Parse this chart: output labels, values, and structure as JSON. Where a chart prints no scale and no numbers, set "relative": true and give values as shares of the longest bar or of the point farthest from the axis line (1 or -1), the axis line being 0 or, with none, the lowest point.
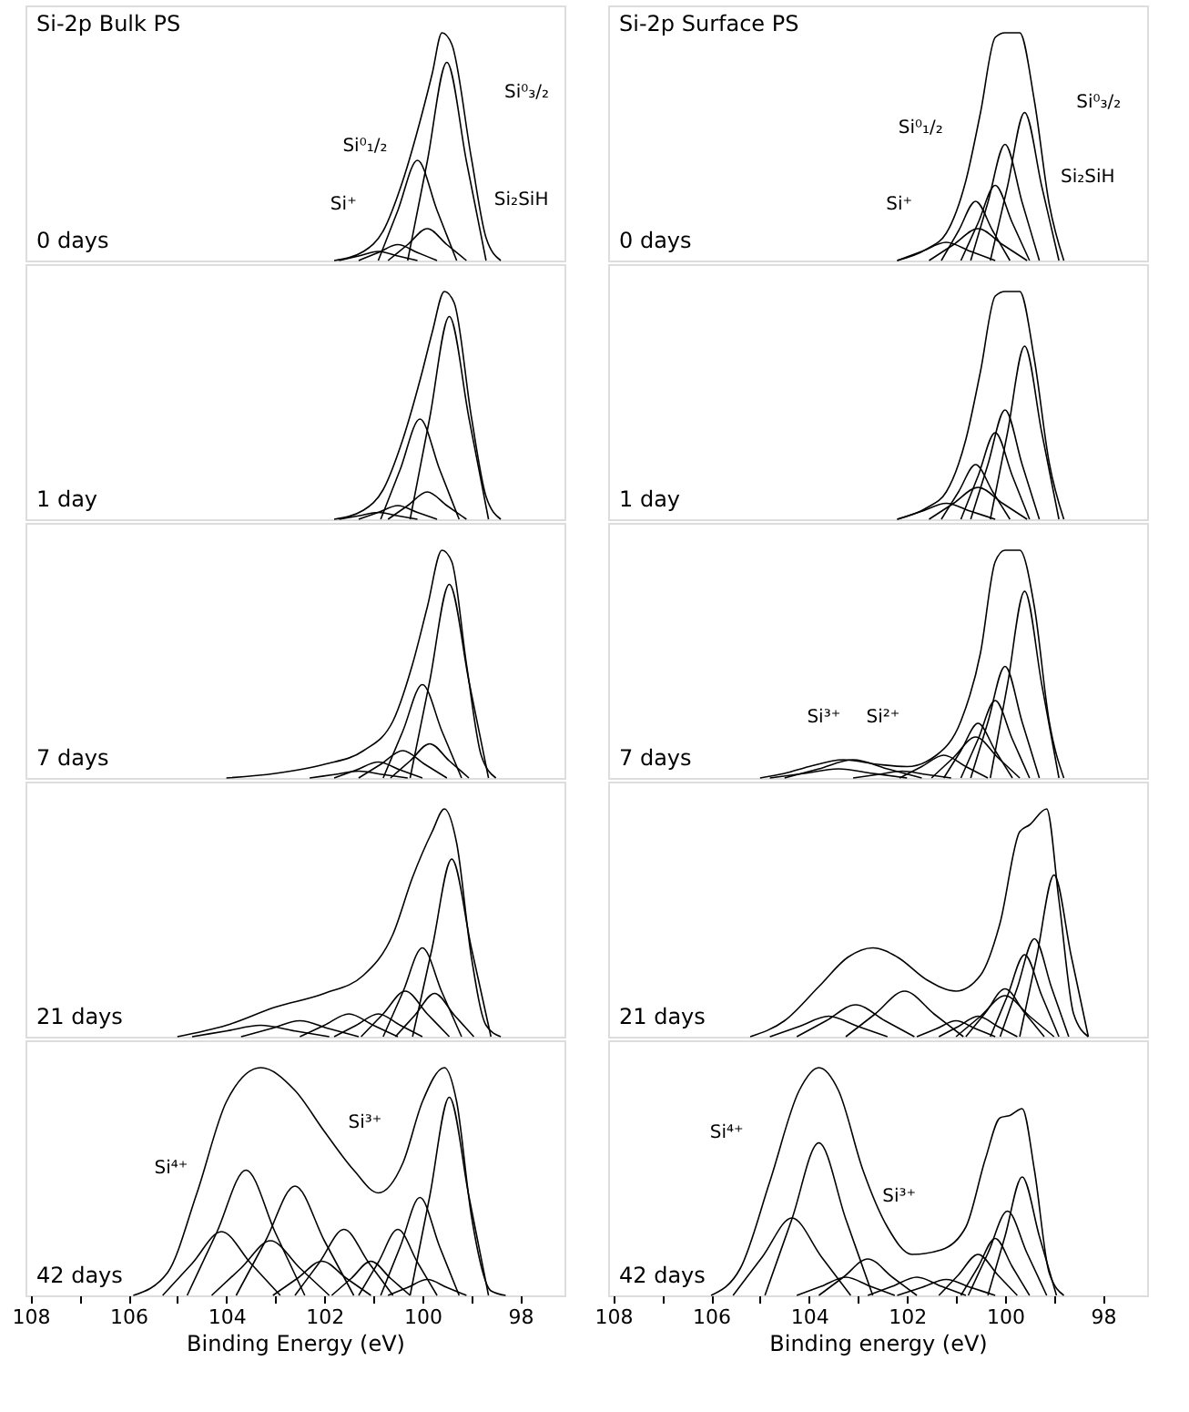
{
  "chart_data": [
    {
      "type": "line",
      "relative": true,
      "title": "Si-2p Bulk PS",
      "xlim": [
        108.1,
        97.1
      ],
      "tick_labels": false,
      "color": "#000000",
      "annotations": [
        "0 days",
        "Si⁰₃/₂",
        "Si⁰₁/₂",
        "Si⁺",
        "Si₂SiH"
      ],
      "series": [
        {
          "x": [
            101.8,
            101.2,
            100.8,
            100.4,
            100.0,
            99.8,
            99.6,
            99.4,
            99.0,
            98.7,
            98.4
          ],
          "values": [
            0,
            0.04,
            0.13,
            0.35,
            0.65,
            0.82,
            1,
            0.95,
            0.45,
            0.1,
            0
          ]
        },
        {
          "x": [
            98.7,
            99.1,
            99.5,
            99.9,
            100.3
          ],
          "values": [
            0,
            0.435,
            0.87,
            0.435,
            0
          ]
        },
        {
          "x": [
            99.3,
            99.7,
            100.1,
            100.5,
            100.9
          ],
          "values": [
            0,
            0.22,
            0.44,
            0.22,
            0
          ]
        },
        {
          "x": [
            99.1,
            99.5,
            99.9,
            100.3,
            100.7
          ],
          "values": [
            0,
            0.07,
            0.14,
            0.07,
            0
          ]
        },
        {
          "x": [
            99.7,
            100.1,
            100.5,
            100.9,
            101.3
          ],
          "values": [
            0,
            0.035,
            0.07,
            0.035,
            0
          ]
        },
        {
          "x": [
            100.1,
            100.5,
            100.9,
            101.3,
            101.7
          ],
          "values": [
            0,
            0.02,
            0.04,
            0.02,
            0
          ]
        }
      ]
    },
    {
      "type": "line",
      "relative": true,
      "title": "Si-2p  Surface PS",
      "xlim": [
        108.1,
        97.1
      ],
      "tick_labels": false,
      "color": "#000000",
      "annotations": [
        "0 days",
        "Si⁰₃/₂",
        "Si⁰₁/₂",
        "Si₂SiH",
        "Si⁺"
      ],
      "series": [
        {
          "x": [
            102.2,
            101.6,
            101.2,
            100.8,
            100.5,
            100.2,
            100.0,
            99.7,
            99.4,
            99.1,
            98.8
          ],
          "values": [
            0,
            0.05,
            0.12,
            0.35,
            0.65,
            0.98,
            1,
            1,
            0.7,
            0.25,
            0
          ]
        },
        {
          "x": [
            98.9,
            99.25,
            99.6,
            99.95,
            100.3
          ],
          "values": [
            0,
            0.325,
            0.65,
            0.325,
            0
          ]
        },
        {
          "x": [
            99.3,
            99.65,
            100.0,
            100.35,
            100.7
          ],
          "values": [
            0,
            0.255,
            0.51,
            0.255,
            0
          ]
        },
        {
          "x": [
            99.5,
            99.85,
            100.2,
            100.55,
            100.9
          ],
          "values": [
            0,
            0.165,
            0.33,
            0.165,
            0
          ]
        },
        {
          "x": [
            99.9,
            100.25,
            100.6,
            100.95,
            101.3
          ],
          "values": [
            0,
            0.13,
            0.26,
            0.13,
            0
          ]
        },
        {
          "x": [
            99.55,
            100.05,
            100.55,
            101.05,
            101.55
          ],
          "values": [
            0,
            0.07,
            0.14,
            0.07,
            0
          ]
        },
        {
          "x": [
            100.2,
            100.7,
            101.2,
            101.7,
            102.2
          ],
          "values": [
            0,
            0.04,
            0.08,
            0.04,
            0
          ]
        }
      ]
    },
    {
      "type": "line",
      "relative": true,
      "xlim": [
        108.1,
        97.1
      ],
      "tick_labels": false,
      "color": "#000000",
      "annotations": [
        "1 day"
      ],
      "series": [
        {
          "x": [
            101.8,
            101.2,
            100.8,
            100.4,
            100.0,
            99.8,
            99.55,
            99.35,
            99.0,
            98.7,
            98.4
          ],
          "values": [
            0,
            0.04,
            0.13,
            0.35,
            0.65,
            0.82,
            1,
            0.95,
            0.45,
            0.1,
            0
          ]
        },
        {
          "x": [
            98.65,
            99.05,
            99.45,
            99.85,
            100.25
          ],
          "values": [
            0,
            0.445,
            0.89,
            0.445,
            0
          ]
        },
        {
          "x": [
            99.25,
            99.65,
            100.05,
            100.45,
            100.85
          ],
          "values": [
            0,
            0.22,
            0.44,
            0.22,
            0
          ]
        },
        {
          "x": [
            99.1,
            99.5,
            99.9,
            100.3,
            100.7
          ],
          "values": [
            0,
            0.06,
            0.12,
            0.06,
            0
          ]
        },
        {
          "x": [
            99.7,
            100.1,
            100.5,
            100.9,
            101.3
          ],
          "values": [
            0,
            0.03,
            0.06,
            0.03,
            0
          ]
        },
        {
          "x": [
            100.1,
            100.5,
            100.9,
            101.3,
            101.7
          ],
          "values": [
            0,
            0.015,
            0.03,
            0.015,
            0
          ]
        }
      ]
    },
    {
      "type": "line",
      "relative": true,
      "xlim": [
        108.1,
        97.1
      ],
      "tick_labels": false,
      "color": "#000000",
      "annotations": [
        "1 day"
      ],
      "series": [
        {
          "x": [
            102.2,
            101.6,
            101.2,
            100.8,
            100.5,
            100.2,
            100.0,
            99.7,
            99.4,
            99.1,
            98.8
          ],
          "values": [
            0,
            0.05,
            0.12,
            0.35,
            0.65,
            0.98,
            1,
            1,
            0.7,
            0.25,
            0
          ]
        },
        {
          "x": [
            98.9,
            99.25,
            99.6,
            99.95,
            100.3
          ],
          "values": [
            0,
            0.38,
            0.76,
            0.38,
            0
          ]
        },
        {
          "x": [
            99.3,
            99.65,
            100.0,
            100.35,
            100.7
          ],
          "values": [
            0,
            0.24,
            0.48,
            0.24,
            0
          ]
        },
        {
          "x": [
            99.5,
            99.85,
            100.2,
            100.55,
            100.9
          ],
          "values": [
            0,
            0.19,
            0.38,
            0.19,
            0
          ]
        },
        {
          "x": [
            99.9,
            100.25,
            100.6,
            100.95,
            101.3
          ],
          "values": [
            0,
            0.12,
            0.24,
            0.12,
            0
          ]
        },
        {
          "x": [
            99.55,
            100.05,
            100.55,
            101.05,
            101.55
          ],
          "values": [
            0,
            0.07,
            0.14,
            0.07,
            0
          ]
        },
        {
          "x": [
            100.2,
            100.7,
            101.2,
            101.7,
            102.2
          ],
          "values": [
            0,
            0.035,
            0.07,
            0.035,
            0
          ]
        }
      ]
    },
    {
      "type": "line",
      "relative": true,
      "xlim": [
        108.1,
        97.1
      ],
      "tick_labels": false,
      "color": "#000000",
      "annotations": [
        "7 days"
      ],
      "series": [
        {
          "x": [
            104.0,
            103.0,
            102.0,
            101.2,
            100.6,
            100.2,
            99.9,
            99.6,
            99.4,
            99.1,
            98.8,
            98.5
          ],
          "values": [
            0,
            0.02,
            0.06,
            0.12,
            0.25,
            0.5,
            0.75,
            1,
            0.95,
            0.5,
            0.1,
            0
          ]
        },
        {
          "x": [
            98.65,
            99.05,
            99.45,
            99.85,
            100.25
          ],
          "values": [
            0,
            0.425,
            0.85,
            0.425,
            0
          ]
        },
        {
          "x": [
            99.2,
            99.6,
            100.0,
            100.4,
            100.8
          ],
          "values": [
            0,
            0.205,
            0.41,
            0.205,
            0
          ]
        },
        {
          "x": [
            99.05,
            99.45,
            99.85,
            100.25,
            100.65
          ],
          "values": [
            0,
            0.075,
            0.15,
            0.075,
            0
          ]
        },
        {
          "x": [
            99.5,
            99.95,
            100.4,
            100.85,
            101.3
          ],
          "values": [
            0,
            0.06,
            0.12,
            0.06,
            0
          ]
        },
        {
          "x": [
            100.0,
            100.45,
            100.9,
            101.35,
            101.8
          ],
          "values": [
            0,
            0.035,
            0.07,
            0.035,
            0
          ]
        },
        {
          "x": [
            100.3,
            100.8,
            101.3,
            101.8,
            102.3
          ],
          "values": [
            0,
            0.015,
            0.03,
            0.015,
            0
          ]
        }
      ]
    },
    {
      "type": "line",
      "relative": true,
      "xlim": [
        108.1,
        97.1
      ],
      "tick_labels": false,
      "color": "#000000",
      "annotations": [
        "7 days",
        "Si³⁺",
        "Si²⁺"
      ],
      "series": [
        {
          "x": [
            105.0,
            104.5,
            104.0,
            103.3,
            102.6,
            102.0,
            101.4,
            100.9,
            100.5,
            100.2,
            100.0,
            99.7,
            99.4,
            99.1,
            98.8
          ],
          "values": [
            0,
            0.02,
            0.05,
            0.08,
            0.06,
            0.05,
            0.1,
            0.25,
            0.55,
            0.95,
            1,
            1,
            0.75,
            0.25,
            0
          ]
        },
        {
          "x": [
            98.9,
            99.25,
            99.6,
            99.95,
            100.3
          ],
          "values": [
            0,
            0.41,
            0.82,
            0.41,
            0
          ]
        },
        {
          "x": [
            99.3,
            99.65,
            100.0,
            100.35,
            100.7
          ],
          "values": [
            0,
            0.245,
            0.49,
            0.245,
            0
          ]
        },
        {
          "x": [
            99.5,
            99.85,
            100.2,
            100.55,
            100.9
          ],
          "values": [
            0,
            0.17,
            0.34,
            0.17,
            0
          ]
        },
        {
          "x": [
            99.85,
            100.2,
            100.55,
            100.9,
            101.25
          ],
          "values": [
            0,
            0.12,
            0.24,
            0.12,
            0
          ]
        },
        {
          "x": [
            99.7,
            100.15,
            100.6,
            101.05,
            101.5
          ],
          "values": [
            0,
            0.09,
            0.18,
            0.09,
            0
          ]
        },
        {
          "x": [
            100.35,
            100.8,
            101.25,
            101.7,
            102.15
          ],
          "values": [
            0,
            0.05,
            0.1,
            0.05,
            0
          ]
        },
        {
          "x": [
            101.1,
            101.6,
            102.1,
            102.6,
            103.1
          ],
          "values": [
            0,
            0.015,
            0.03,
            0.015,
            0
          ]
        },
        {
          "x": [
            101.7,
            102.4,
            103.1,
            103.8,
            104.5
          ],
          "values": [
            0,
            0.04,
            0.08,
            0.04,
            0
          ]
        },
        {
          "x": [
            102.0,
            102.7,
            103.4,
            104.1,
            104.8
          ],
          "values": [
            0,
            0.02,
            0.04,
            0.02,
            0
          ]
        }
      ]
    },
    {
      "type": "line",
      "relative": true,
      "xlim": [
        108.1,
        97.1
      ],
      "tick_labels": false,
      "color": "#000000",
      "annotations": [
        "21 days"
      ],
      "series": [
        {
          "x": [
            105.0,
            104.0,
            103.0,
            102.0,
            101.2,
            100.6,
            100.2,
            99.8,
            99.55,
            99.3,
            99.0,
            98.7,
            98.4
          ],
          "values": [
            0,
            0.05,
            0.13,
            0.19,
            0.27,
            0.45,
            0.7,
            0.9,
            1,
            0.85,
            0.35,
            0.05,
            0
          ]
        },
        {
          "x": [
            98.6,
            99.0,
            99.4,
            99.8,
            100.2
          ],
          "values": [
            0,
            0.39,
            0.78,
            0.39,
            0
          ]
        },
        {
          "x": [
            99.2,
            99.6,
            100.0,
            100.4,
            100.8
          ],
          "values": [
            0,
            0.195,
            0.39,
            0.195,
            0
          ]
        },
        {
          "x": [
            98.95,
            99.35,
            99.75,
            100.15,
            100.55
          ],
          "values": [
            0,
            0.095,
            0.19,
            0.095,
            0
          ]
        },
        {
          "x": [
            99.45,
            99.9,
            100.35,
            100.8,
            101.25
          ],
          "values": [
            0,
            0.1,
            0.2,
            0.1,
            0
          ]
        },
        {
          "x": [
            100.0,
            100.45,
            100.9,
            101.35,
            101.8
          ],
          "values": [
            0,
            0.05,
            0.1,
            0.05,
            0
          ]
        },
        {
          "x": [
            100.5,
            101.0,
            101.5,
            102.0,
            102.5
          ],
          "values": [
            0,
            0.05,
            0.1,
            0.05,
            0
          ]
        },
        {
          "x": [
            101.3,
            101.9,
            102.5,
            103.1,
            103.7
          ],
          "values": [
            0,
            0.035,
            0.07,
            0.035,
            0
          ]
        },
        {
          "x": [
            101.9,
            102.6,
            103.3,
            104.0,
            104.7
          ],
          "values": [
            0,
            0.025,
            0.05,
            0.025,
            0
          ]
        }
      ]
    },
    {
      "type": "line",
      "relative": true,
      "xlim": [
        108.1,
        97.1
      ],
      "tick_labels": false,
      "color": "#000000",
      "annotations": [
        "21 days"
      ],
      "series": [
        {
          "x": [
            105.2,
            104.5,
            103.8,
            103.2,
            102.7,
            102.2,
            101.6,
            101.0,
            100.5,
            100.1,
            99.7,
            99.5,
            99.15,
            98.9,
            98.6,
            98.3
          ],
          "values": [
            0,
            0.07,
            0.22,
            0.35,
            0.39,
            0.35,
            0.25,
            0.2,
            0.27,
            0.5,
            0.9,
            0.93,
            1,
            0.6,
            0.1,
            0
          ]
        },
        {
          "x": [
            98.3,
            98.65,
            99.0,
            99.35,
            99.7
          ],
          "values": [
            0,
            0.355,
            0.71,
            0.355,
            0
          ]
        },
        {
          "x": [
            98.7,
            99.05,
            99.4,
            99.75,
            100.1
          ],
          "values": [
            0,
            0.215,
            0.43,
            0.215,
            0
          ]
        },
        {
          "x": [
            98.9,
            99.25,
            99.6,
            99.95,
            100.3
          ],
          "values": [
            0,
            0.18,
            0.36,
            0.18,
            0
          ]
        },
        {
          "x": [
            99.2,
            99.6,
            100.0,
            100.4,
            100.8
          ],
          "values": [
            0,
            0.105,
            0.21,
            0.105,
            0
          ]
        },
        {
          "x": [
            99.0,
            99.5,
            100.0,
            100.5,
            101.0
          ],
          "values": [
            0,
            0.09,
            0.18,
            0.09,
            0
          ]
        },
        {
          "x": [
            99.75,
            100.15,
            100.55,
            100.95,
            101.35
          ],
          "values": [
            0,
            0.045,
            0.09,
            0.045,
            0
          ]
        },
        {
          "x": [
            100.2,
            100.6,
            101.0,
            101.4,
            101.8
          ],
          "values": [
            0,
            0.035,
            0.07,
            0.035,
            0
          ]
        },
        {
          "x": [
            100.85,
            101.45,
            102.05,
            102.65,
            103.25
          ],
          "values": [
            0,
            0.1,
            0.2,
            0.1,
            0
          ]
        },
        {
          "x": [
            101.85,
            102.45,
            103.05,
            103.65,
            104.25
          ],
          "values": [
            0,
            0.07,
            0.14,
            0.07,
            0
          ]
        },
        {
          "x": [
            102.4,
            103.0,
            103.6,
            104.2,
            104.8
          ],
          "values": [
            0,
            0.045,
            0.09,
            0.045,
            0
          ]
        }
      ]
    },
    {
      "type": "line",
      "relative": true,
      "xlim": [
        108.1,
        97.1
      ],
      "xticks": [
        108,
        {
          "value": 107,
          "label": null
        },
        106,
        {
          "value": 105,
          "label": null
        },
        104,
        {
          "value": 103,
          "label": null
        },
        102,
        {
          "value": 101,
          "label": null
        },
        100,
        {
          "value": 99,
          "label": null
        },
        98
      ],
      "tick_labels": "x",
      "xlabel": "Binding Energy (eV)",
      "color": "#000000",
      "annotations": [
        "42 days",
        "Si⁴⁺",
        "Si³⁺"
      ],
      "series": [
        {
          "x": [
            105.9,
            105.2,
            104.6,
            104.0,
            103.3,
            102.6,
            102.0,
            101.4,
            100.9,
            100.4,
            100.0,
            99.55,
            99.3,
            99.0,
            98.6,
            98.3
          ],
          "values": [
            0,
            0.1,
            0.45,
            0.85,
            1,
            0.9,
            0.72,
            0.55,
            0.45,
            0.58,
            0.85,
            1,
            0.85,
            0.35,
            0.02,
            0
          ]
        },
        {
          "x": [
            102.9,
            103.5,
            104.1,
            104.7,
            105.3
          ],
          "values": [
            0,
            0.14,
            0.28,
            0.14,
            0
          ]
        },
        {
          "x": [
            102.4,
            103.0,
            103.6,
            104.2,
            104.8
          ],
          "values": [
            0,
            0.275,
            0.55,
            0.275,
            0
          ]
        },
        {
          "x": [
            101.9,
            102.5,
            103.1,
            103.7,
            104.3
          ],
          "values": [
            0,
            0.12,
            0.24,
            0.12,
            0
          ]
        },
        {
          "x": [
            101.4,
            102.0,
            102.6,
            103.2,
            103.8
          ],
          "values": [
            0,
            0.24,
            0.48,
            0.24,
            0
          ]
        },
        {
          "x": [
            101.05,
            101.55,
            102.05,
            102.55,
            103.05
          ],
          "values": [
            0,
            0.075,
            0.15,
            0.075,
            0
          ]
        },
        {
          "x": [
            100.6,
            101.1,
            101.6,
            102.1,
            102.6
          ],
          "values": [
            0,
            0.145,
            0.29,
            0.145,
            0
          ]
        },
        {
          "x": [
            100.25,
            100.65,
            101.05,
            101.45,
            101.85
          ],
          "values": [
            0,
            0.075,
            0.15,
            0.075,
            0
          ]
        },
        {
          "x": [
            99.7,
            100.1,
            100.5,
            100.9,
            101.3
          ],
          "values": [
            0,
            0.145,
            0.29,
            0.145,
            0
          ]
        },
        {
          "x": [
            99.25,
            99.65,
            100.05,
            100.45,
            100.85
          ],
          "values": [
            0,
            0.215,
            0.43,
            0.215,
            0
          ]
        },
        {
          "x": [
            98.65,
            99.05,
            99.45,
            99.85,
            100.25
          ],
          "values": [
            0,
            0.435,
            0.87,
            0.435,
            0
          ]
        },
        {
          "x": [
            99.1,
            99.5,
            99.9,
            100.3,
            100.7
          ],
          "values": [
            0,
            0.035,
            0.07,
            0.035,
            0
          ]
        }
      ]
    },
    {
      "type": "line",
      "relative": true,
      "xlim": [
        108.1,
        97.1
      ],
      "xticks": [
        108,
        {
          "value": 107,
          "label": null
        },
        106,
        {
          "value": 105,
          "label": null
        },
        104,
        {
          "value": 103,
          "label": null
        },
        102,
        {
          "value": 101,
          "label": null
        },
        100,
        {
          "value": 99,
          "label": null
        },
        98
      ],
      "tick_labels": "x",
      "xlabel": "Binding energy (eV)",
      "color": "#000000",
      "annotations": [
        "42 days",
        "Si⁴⁺",
        "Si³⁺"
      ],
      "series": [
        {
          "x": [
            106.0,
            105.4,
            104.8,
            104.2,
            103.8,
            103.4,
            102.9,
            102.4,
            101.9,
            101.3,
            100.8,
            100.4,
            100.1,
            99.9,
            99.65,
            99.4,
            99.1,
            98.8
          ],
          "values": [
            0,
            0.12,
            0.5,
            0.9,
            1,
            0.9,
            0.55,
            0.3,
            0.18,
            0.2,
            0.3,
            0.6,
            0.78,
            0.79,
            0.82,
            0.55,
            0.1,
            0
          ]
        },
        {
          "x": [
            103.15,
            103.75,
            104.35,
            104.95,
            105.55
          ],
          "values": [
            0,
            0.17,
            0.34,
            0.17,
            0
          ]
        },
        {
          "x": [
            102.7,
            103.25,
            103.8,
            104.35,
            104.9
          ],
          "values": [
            0,
            0.335,
            0.67,
            0.335,
            0
          ]
        },
        {
          "x": [
            102.25,
            102.75,
            103.25,
            103.75,
            104.25
          ],
          "values": [
            0,
            0.04,
            0.08,
            0.04,
            0
          ]
        },
        {
          "x": [
            101.8,
            102.3,
            102.8,
            103.3,
            103.8
          ],
          "values": [
            0,
            0.08,
            0.16,
            0.08,
            0
          ]
        },
        {
          "x": [
            100.8,
            101.3,
            101.8,
            102.3,
            102.8
          ],
          "values": [
            0,
            0.04,
            0.08,
            0.04,
            0
          ]
        },
        {
          "x": [
            100.2,
            100.7,
            101.2,
            101.7,
            102.2
          ],
          "values": [
            0,
            0.035,
            0.07,
            0.035,
            0
          ]
        },
        {
          "x": [
            99.75,
            100.15,
            100.55,
            100.95,
            101.35
          ],
          "values": [
            0,
            0.09,
            0.18,
            0.09,
            0
          ]
        },
        {
          "x": [
            99.5,
            99.85,
            100.2,
            100.55,
            100.9
          ],
          "values": [
            0,
            0.125,
            0.25,
            0.125,
            0
          ]
        },
        {
          "x": [
            99.15,
            99.55,
            99.95,
            100.35,
            100.75
          ],
          "values": [
            0,
            0.185,
            0.37,
            0.185,
            0
          ]
        },
        {
          "x": [
            98.95,
            99.3,
            99.65,
            100.0,
            100.35
          ],
          "values": [
            0,
            0.26,
            0.52,
            0.26,
            0
          ]
        }
      ]
    }
  ]
}
